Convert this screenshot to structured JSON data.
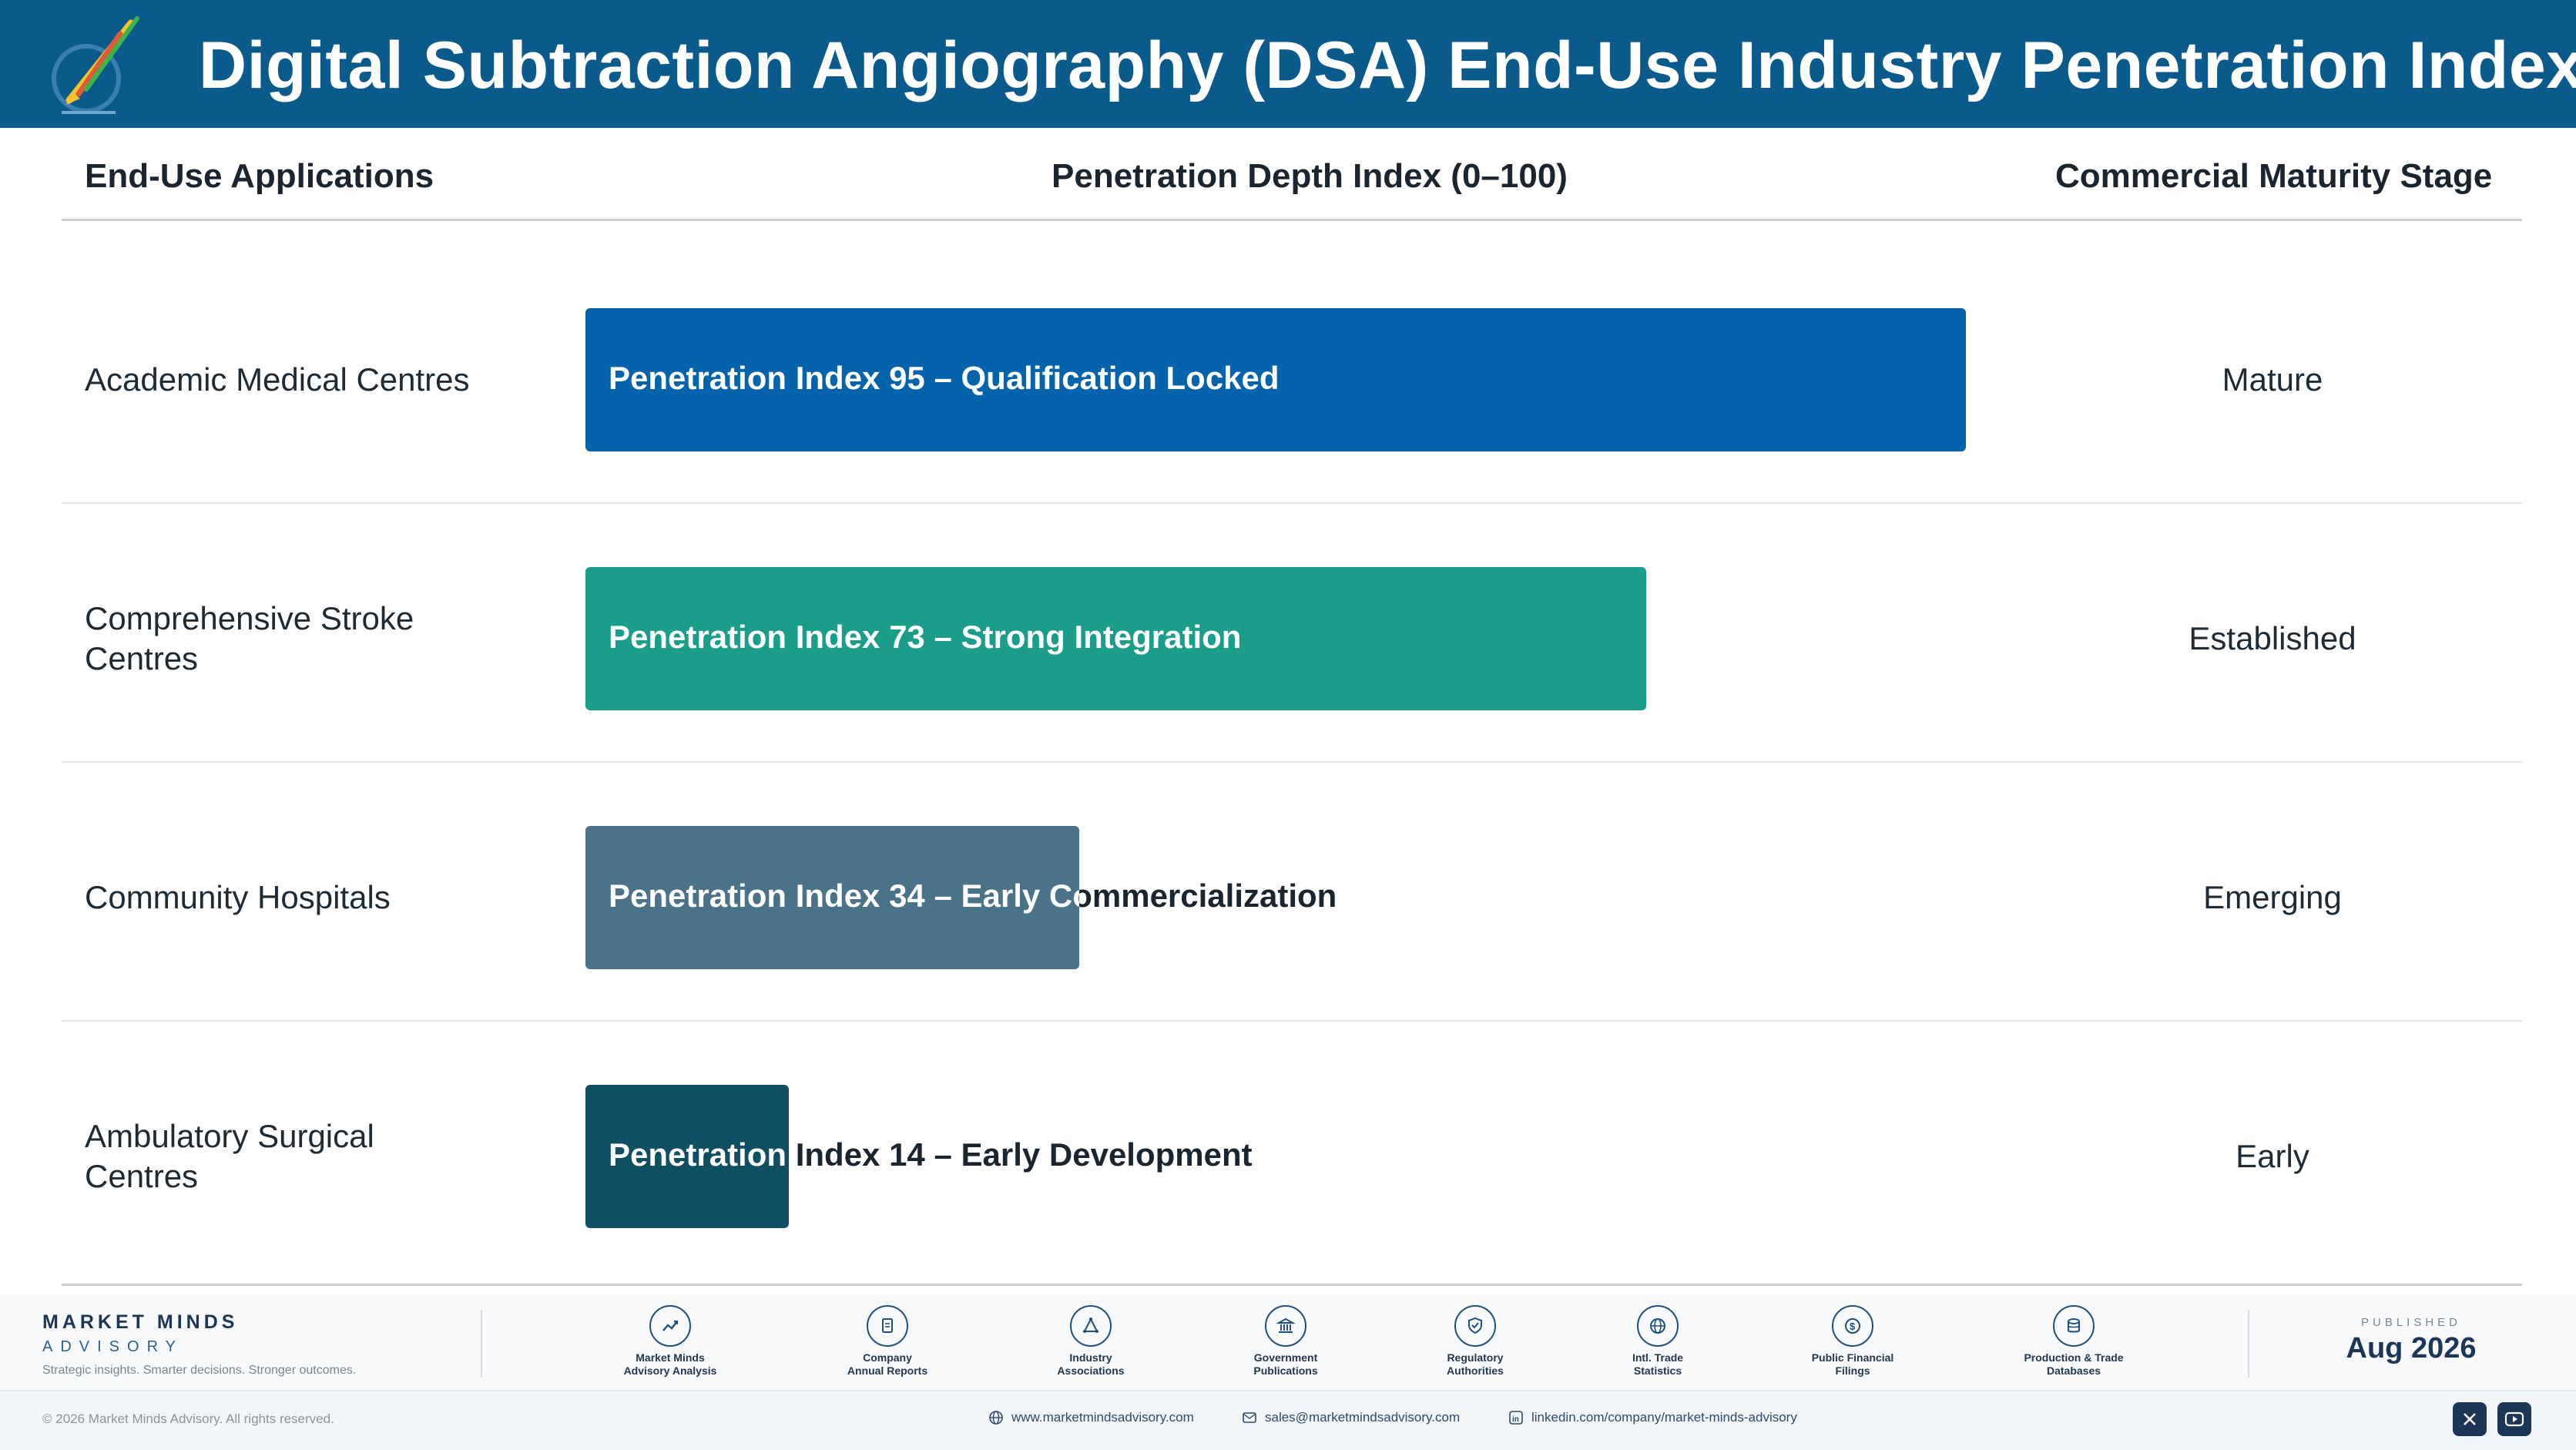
{
  "header": {
    "title": "Digital Subtraction Angiography (DSA) End-Use Industry Penetration Index",
    "logo_icon": "pen-chart-logo-icon"
  },
  "columns": {
    "applications": "End-Use Applications",
    "penetration": "Penetration Depth Index (0–100)",
    "maturity": "Commercial Maturity Stage"
  },
  "chart_data": {
    "type": "bar",
    "orientation": "horizontal",
    "title": "Digital Subtraction Angiography (DSA) End-Use Industry Penetration Index",
    "xlabel": "Penetration Depth Index (0–100)",
    "ylabel": "End-Use Applications",
    "xlim": [
      0,
      100
    ],
    "grid": false,
    "categories": [
      "Academic Medical Centres",
      "Comprehensive Stroke Centres",
      "Community Hospitals",
      "Ambulatory Surgical Centres"
    ],
    "values": [
      95,
      73,
      34,
      14
    ],
    "bar_labels": [
      "Penetration Index 95 – Qualification Locked",
      "Penetration Index 73 – Strong Integration",
      "Penetration Index 34 – Early Commercialization",
      "Penetration Index 14 – Early Development"
    ],
    "maturity_stages": [
      "Mature",
      "Established",
      "Emerging",
      "Early"
    ],
    "colors": [
      "#0463ab",
      "#1a9e8a",
      "#4a7289",
      "#0f4f62"
    ]
  },
  "footer": {
    "brand_name": "MARKET MINDS",
    "brand_sub": "ADVISORY",
    "tagline": "Strategic insights. Smarter decisions. Stronger outcomes.",
    "sources": [
      {
        "label": "Market Minds\nAdvisory Analysis",
        "icon": "trend-line-icon"
      },
      {
        "label": "Company\nAnnual Reports",
        "icon": "document-icon"
      },
      {
        "label": "Industry\nAssociations",
        "icon": "network-icon"
      },
      {
        "label": "Government\nPublications",
        "icon": "government-building-icon"
      },
      {
        "label": "Regulatory\nAuthorities",
        "icon": "shield-check-icon"
      },
      {
        "label": "Intl. Trade\nStatistics",
        "icon": "globe-icon"
      },
      {
        "label": "Public Financial\nFilings",
        "icon": "dollar-coin-icon"
      },
      {
        "label": "Production & Trade\nDatabases",
        "icon": "database-icon"
      }
    ],
    "published_label": "PUBLISHED",
    "published_date": "Aug 2026",
    "copyright": "© 2026 Market Minds Advisory. All rights reserved.",
    "website": "www.marketmindsadvisory.com",
    "email": "sales@marketmindsadvisory.com",
    "linkedin": "linkedin.com/company/market-minds-advisory"
  }
}
